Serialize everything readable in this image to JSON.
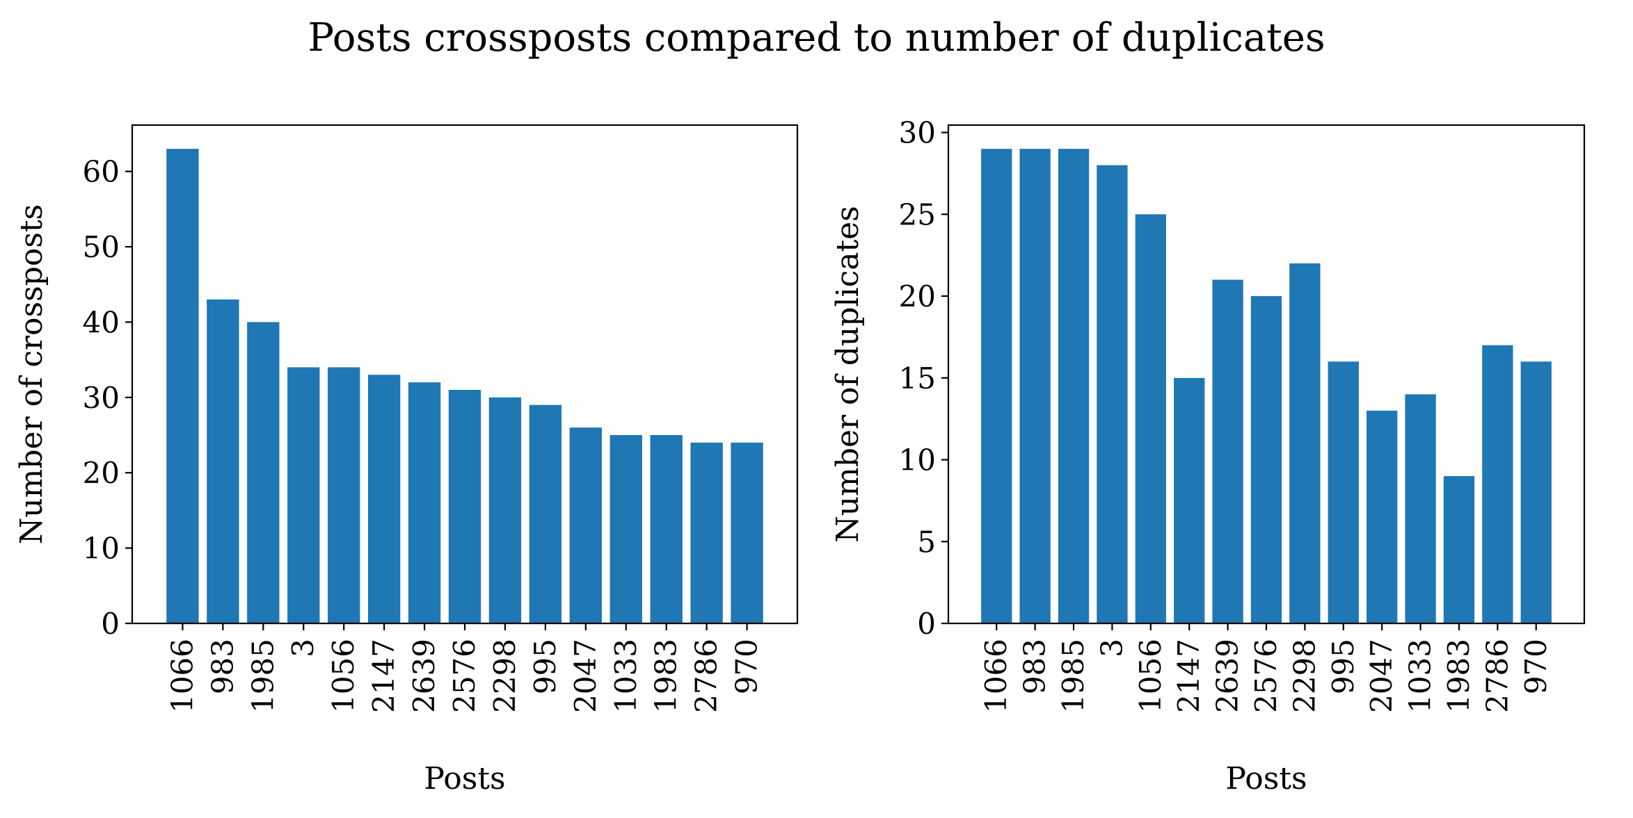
{
  "figure_title": "Posts crossposts compared to number of duplicates",
  "bar_color": "#1f77b4",
  "chart_data": [
    {
      "type": "bar",
      "title": "",
      "xlabel": "Posts",
      "ylabel": "Number of crossposts",
      "categories": [
        "1066",
        "983",
        "1985",
        "3",
        "1056",
        "2147",
        "2639",
        "2576",
        "2298",
        "995",
        "2047",
        "1033",
        "1983",
        "2786",
        "970"
      ],
      "values": [
        63,
        43,
        40,
        34,
        34,
        33,
        32,
        31,
        30,
        29,
        26,
        25,
        25,
        24,
        24
      ],
      "ylim": [
        0,
        66.15
      ],
      "yticks": [
        0,
        10,
        20,
        30,
        40,
        50,
        60
      ],
      "grid": false
    },
    {
      "type": "bar",
      "title": "",
      "xlabel": "Posts",
      "ylabel": "Number of duplicates",
      "categories": [
        "1066",
        "983",
        "1985",
        "3",
        "1056",
        "2147",
        "2639",
        "2576",
        "2298",
        "995",
        "2047",
        "1033",
        "1983",
        "2786",
        "970"
      ],
      "values": [
        29,
        29,
        29,
        28,
        25,
        15,
        21,
        20,
        22,
        16,
        13,
        14,
        9,
        17,
        16
      ],
      "ylim": [
        0,
        30.45
      ],
      "yticks": [
        0,
        5,
        10,
        15,
        20,
        25,
        30
      ],
      "grid": false
    }
  ]
}
